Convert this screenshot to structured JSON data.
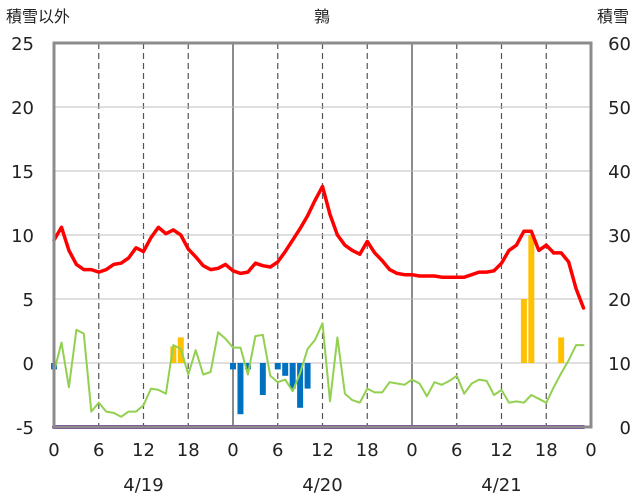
{
  "chart_data": {
    "type": "line",
    "title": "鶉",
    "left_axis_label": "積雪以外",
    "right_axis_label": "積雪",
    "left_ylim": [
      -5,
      25
    ],
    "left_ticks": [
      "25",
      "20",
      "15",
      "10",
      "5",
      "0",
      "-5"
    ],
    "right_ylim": [
      0,
      60
    ],
    "right_ticks": [
      "60",
      "50",
      "40",
      "30",
      "20",
      "10",
      "0"
    ],
    "x_range_hours": [
      0,
      72
    ],
    "x_tick_labels": [
      "0",
      "6",
      "12",
      "18",
      "0",
      "6",
      "12",
      "18",
      "0",
      "6",
      "12",
      "18",
      "0"
    ],
    "date_labels": [
      "4/19",
      "4/20",
      "4/21"
    ],
    "series": [
      {
        "color": "#ff0000",
        "axis": "left",
        "x": [
          0,
          1,
          2,
          3,
          4,
          5,
          6,
          7,
          8,
          9,
          10,
          11,
          12,
          13,
          14,
          15,
          16,
          17,
          18,
          19,
          20,
          21,
          22,
          23,
          24,
          25,
          26,
          27,
          28,
          29,
          30,
          31,
          32,
          33,
          34,
          35,
          36,
          37,
          38,
          39,
          40,
          41,
          42,
          43,
          44,
          45,
          46,
          47,
          48,
          49,
          50,
          51,
          52,
          53,
          54,
          55,
          56,
          57,
          58,
          59,
          60,
          61,
          62,
          63,
          64,
          65,
          66,
          67
        ],
        "values": [
          9.6,
          10.6,
          8.8,
          7.7,
          7.3,
          7.3,
          7.1,
          7.3,
          7.7,
          7.8,
          8.2,
          9.0,
          8.7,
          9.8,
          10.6,
          10.1,
          10.4,
          10.0,
          8.9,
          8.3,
          7.6,
          7.3,
          7.4,
          7.7,
          7.2,
          7.0,
          7.1,
          7.8,
          7.6,
          7.5,
          7.9,
          8.7,
          9.6,
          10.5,
          11.5,
          12.7,
          13.8,
          11.6,
          10.0,
          9.2,
          8.8,
          8.5,
          9.5,
          8.6,
          8.0,
          7.3,
          7.0,
          6.9,
          6.9,
          6.8,
          6.8,
          6.8,
          6.7,
          6.7,
          6.7,
          6.7,
          6.9,
          7.1,
          7.1,
          7.2,
          7.8,
          8.8,
          9.2,
          10.3,
          10.3,
          8.8,
          9.2,
          8.6
        ]
      },
      {
        "color": "#ff0000",
        "axis": "left",
        "x": [
          67,
          68,
          69,
          70,
          71
        ],
        "values": [
          8.6,
          8.6,
          7.9,
          5.8,
          4.3
        ]
      },
      {
        "color": "#92d050",
        "axis": "left",
        "x": [
          0,
          1,
          2,
          3,
          4,
          5,
          6,
          7,
          8,
          9,
          10,
          11,
          12,
          13,
          14,
          15,
          16,
          17,
          18,
          19,
          20,
          21,
          22,
          23,
          24,
          25,
          26,
          27,
          28,
          29,
          30,
          31,
          32,
          33,
          34,
          35,
          36,
          37,
          38,
          39,
          40,
          41,
          42,
          43,
          44,
          45,
          46,
          47,
          48,
          49,
          50,
          51,
          52,
          53,
          54,
          55,
          56,
          57,
          58,
          59,
          60,
          61,
          62,
          63,
          64,
          65,
          66,
          67,
          68,
          69,
          70,
          71
        ],
        "values": [
          -0.7,
          1.6,
          -1.9,
          2.6,
          2.3,
          -3.8,
          -3.1,
          -3.8,
          -3.9,
          -4.2,
          -3.8,
          -3.8,
          -3.3,
          -2.0,
          -2.1,
          -2.4,
          1.4,
          1.1,
          -0.9,
          1.0,
          -0.9,
          -0.7,
          2.4,
          1.9,
          1.2,
          1.2,
          -0.9,
          2.1,
          2.2,
          -1.0,
          -1.5,
          -1.3,
          -2.2,
          -0.8,
          1.1,
          1.8,
          3.1,
          -3.0,
          2.0,
          -2.4,
          -2.9,
          -3.1,
          -2.0,
          -2.3,
          -2.3,
          -1.5,
          -1.6,
          -1.7,
          -1.3,
          -1.6,
          -2.6,
          -1.5,
          -1.7,
          -1.4,
          -1.0,
          -2.4,
          -1.6,
          -1.3,
          -1.4,
          -2.5,
          -2.1,
          -3.1,
          -3.0,
          -3.1,
          -2.5,
          -2.8,
          -3.1,
          -1.9,
          -0.8,
          0.2,
          1.4,
          1.4
        ]
      },
      {
        "color": "#7030a0",
        "axis": "right",
        "x": [
          0,
          71
        ],
        "values": [
          0,
          0
        ]
      }
    ],
    "bars": [
      {
        "color": "#ffc000",
        "axis": "left",
        "x": [
          16,
          17,
          63,
          64,
          68
        ],
        "values": [
          1.3,
          2.0,
          5.0,
          10.0,
          2.0
        ]
      },
      {
        "color": "#0070c0",
        "axis": "left",
        "x": [
          0,
          24,
          25,
          26,
          28,
          30,
          31,
          32,
          33,
          34
        ],
        "values": [
          -0.5,
          -0.5,
          -4.0,
          -0.5,
          -2.5,
          -0.5,
          -1.0,
          -2.0,
          -3.5,
          -2.0
        ]
      }
    ],
    "grid": true,
    "legend": "none"
  }
}
